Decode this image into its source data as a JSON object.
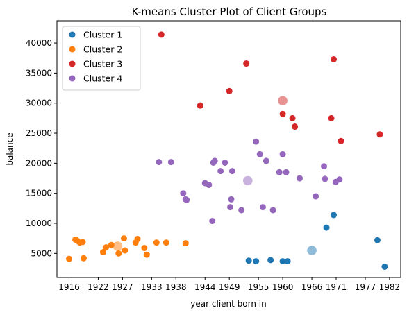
{
  "chart_data": {
    "type": "scatter",
    "title": "K-means Cluster Plot of Client Groups",
    "xlabel": "year client born in",
    "ylabel": "balance",
    "xlim": [
      1913.5,
      1984.3
    ],
    "ylim": [
      1000,
      43700
    ],
    "xticks": [
      1916,
      1922,
      1927,
      1933,
      1938,
      1944,
      1949,
      1955,
      1960,
      1966,
      1971,
      1977,
      1982
    ],
    "yticks": [
      5000,
      10000,
      15000,
      20000,
      25000,
      30000,
      35000,
      40000
    ],
    "legend_position": "upper-left",
    "grid": false,
    "series": [
      {
        "name": "Cluster 1",
        "color": "#1f77b4",
        "points": [
          [
            1953.0,
            3800
          ],
          [
            1954.5,
            3700
          ],
          [
            1957.5,
            3900
          ],
          [
            1960.0,
            3700
          ],
          [
            1961.0,
            3700
          ],
          [
            1969.0,
            9300
          ],
          [
            1970.5,
            11400
          ],
          [
            1979.5,
            7200
          ],
          [
            1981.0,
            2800
          ]
        ],
        "centroid": [
          1966.0,
          5500
        ]
      },
      {
        "name": "Cluster 2",
        "color": "#ff7f0e",
        "points": [
          [
            1916.0,
            4100
          ],
          [
            1917.3,
            7300
          ],
          [
            1917.7,
            7100
          ],
          [
            1918.2,
            6800
          ],
          [
            1918.8,
            6900
          ],
          [
            1919.0,
            4200
          ],
          [
            1923.0,
            5200
          ],
          [
            1923.6,
            6000
          ],
          [
            1924.7,
            6400
          ],
          [
            1926.2,
            5000
          ],
          [
            1927.5,
            5500
          ],
          [
            1927.3,
            7500
          ],
          [
            1929.7,
            6800
          ],
          [
            1930.1,
            7400
          ],
          [
            1931.5,
            5900
          ],
          [
            1932.0,
            4800
          ],
          [
            1934.0,
            6800
          ],
          [
            1936.0,
            6800
          ],
          [
            1940.0,
            6700
          ]
        ],
        "centroid": [
          1926.0,
          6200
        ]
      },
      {
        "name": "Cluster 3",
        "color": "#d62728",
        "points": [
          [
            1935.0,
            41400
          ],
          [
            1943.0,
            29600
          ],
          [
            1949.0,
            32000
          ],
          [
            1952.5,
            36600
          ],
          [
            1960.0,
            28200
          ],
          [
            1962.0,
            27500
          ],
          [
            1962.5,
            26100
          ],
          [
            1970.0,
            27500
          ],
          [
            1970.5,
            37300
          ],
          [
            1972.0,
            23700
          ],
          [
            1980.0,
            24800
          ]
        ],
        "centroid": [
          1960.0,
          30400
        ]
      },
      {
        "name": "Cluster 4",
        "color": "#9467bd",
        "points": [
          [
            1934.5,
            20200
          ],
          [
            1937.0,
            20200
          ],
          [
            1939.5,
            15000
          ],
          [
            1940.0,
            14000
          ],
          [
            1940.2,
            13900
          ],
          [
            1944.0,
            16700
          ],
          [
            1944.8,
            16400
          ],
          [
            1945.5,
            10400
          ],
          [
            1945.7,
            20100
          ],
          [
            1946.0,
            20400
          ],
          [
            1947.2,
            18700
          ],
          [
            1948.1,
            20100
          ],
          [
            1949.2,
            12700
          ],
          [
            1949.4,
            14000
          ],
          [
            1949.6,
            18700
          ],
          [
            1951.5,
            12200
          ],
          [
            1954.5,
            23600
          ],
          [
            1955.3,
            21500
          ],
          [
            1955.9,
            12700
          ],
          [
            1956.6,
            20400
          ],
          [
            1958.0,
            12200
          ],
          [
            1959.3,
            18500
          ],
          [
            1960.0,
            21500
          ],
          [
            1960.7,
            18500
          ],
          [
            1963.5,
            17500
          ],
          [
            1966.8,
            14500
          ],
          [
            1968.5,
            19500
          ],
          [
            1968.7,
            17400
          ],
          [
            1970.9,
            16900
          ],
          [
            1971.7,
            17300
          ]
        ],
        "centroid": [
          1952.8,
          17100
        ]
      }
    ]
  }
}
